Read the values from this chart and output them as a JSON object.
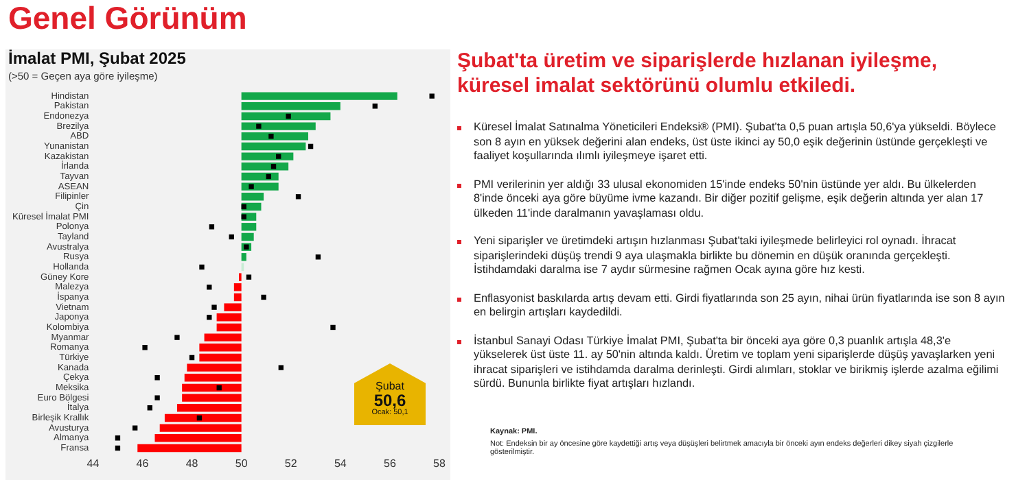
{
  "chart_data": {
    "type": "bar",
    "orientation": "horizontal",
    "title": "İmalat PMI, Şubat 2025",
    "subtitle": "(>50 = Geçen aya göre iyileşme)",
    "categories": [
      "Hindistan",
      "Pakistan",
      "Endonezya",
      "Brezilya",
      "ABD",
      "Yunanistan",
      "Kazakistan",
      "İrlanda",
      "Tayvan",
      "ASEAN",
      "Filipinler",
      "Çin",
      "Küresel İmalat PMI",
      "Polonya",
      "Tayland",
      "Avustralya",
      "Rusya",
      "Hollanda",
      "Güney Kore",
      "Malezya",
      "İspanya",
      "Vietnam",
      "Japonya",
      "Kolombiya",
      "Myanmar",
      "Romanya",
      "Türkiye",
      "Kanada",
      "Çekya",
      "Meksika",
      "Euro Bölgesi",
      "İtalya",
      "Birleşik Krallık",
      "Avusturya",
      "Almanya",
      "Fransa"
    ],
    "series": [
      {
        "type": "bar",
        "colors": [
          "#13a84a",
          "#13a84a",
          "#13a84a",
          "#13a84a",
          "#13a84a",
          "#13a84a",
          "#13a84a",
          "#13a84a",
          "#13a84a",
          "#13a84a",
          "#13a84a",
          "#13a84a",
          "#13a84a",
          "#13a84a",
          "#13a84a",
          "#13a84a",
          "#13a84a",
          "#c8ecd4",
          "#ff0000",
          "#ff0000",
          "#ff0000",
          "#ff0000",
          "#ff0000",
          "#ff0000",
          "#ff0000",
          "#ff0000",
          "#ff0000",
          "#ff0000",
          "#ff0000",
          "#ff0000",
          "#ff0000",
          "#ff0000",
          "#ff0000",
          "#ff0000",
          "#ff0000",
          "#ff0000"
        ],
        "base": [
          50,
          50,
          50,
          50,
          50,
          50,
          50,
          50,
          50,
          50,
          50,
          50,
          50,
          50,
          50,
          50,
          50,
          50,
          50,
          50,
          50,
          50,
          50,
          50,
          50,
          50,
          50,
          50,
          50,
          50,
          50,
          50,
          50,
          50,
          50,
          50
        ],
        "values": [
          6.3,
          4.0,
          3.6,
          3.0,
          2.7,
          2.6,
          2.1,
          1.9,
          1.5,
          1.5,
          0.9,
          0.8,
          0.6,
          0.6,
          0.5,
          0.4,
          0.2,
          0.1,
          -0.1,
          -0.3,
          -0.3,
          -0.7,
          -1.0,
          -1.0,
          -1.5,
          -1.7,
          -1.7,
          -2.2,
          -2.3,
          -2.4,
          -2.4,
          -2.6,
          -3.1,
          -3.3,
          -3.5,
          -4.2
        ]
      },
      {
        "type": "scatter",
        "color": "#000000",
        "x": [
          "Hindistan",
          "Pakistan",
          "Endonezya",
          "Brezilya",
          "ABD",
          "Yunanistan",
          "Kazakistan",
          "İrlanda",
          "Tayvan",
          "ASEAN",
          "Filipinler",
          "Çin",
          "Küresel İmalat PMI",
          "Polonya",
          "Tayland",
          "Avustralya",
          "Rusya",
          "Hollanda",
          "Güney Kore",
          "Malezya",
          "İspanya",
          "Vietnam",
          "Japonya",
          "Kolombiya",
          "Myanmar",
          "Romanya",
          "Türkiye",
          "Kanada",
          "Çekya",
          "Meksika",
          "Euro Bölgesi",
          "İtalya",
          "Birleşik Krallık",
          "Avusturya",
          "Almanya",
          "Fransa"
        ],
        "values": [
          57.7,
          55.4,
          51.9,
          50.7,
          51.2,
          52.8,
          51.5,
          51.3,
          51.1,
          50.4,
          52.3,
          50.1,
          50.1,
          48.8,
          49.6,
          50.2,
          53.1,
          48.4,
          50.3,
          48.7,
          50.9,
          48.9,
          48.7,
          53.7,
          47.4,
          46.1,
          48.0,
          51.6,
          46.6,
          49.1,
          46.6,
          46.3,
          48.3,
          45.7,
          45.0,
          45.0
        ]
      }
    ],
    "xlim": [
      44,
      58
    ],
    "xticks": [
      44,
      46,
      48,
      50,
      52,
      54,
      56,
      58
    ],
    "legend": false,
    "marker": "square",
    "annotations": [
      "Genel Görünüm",
      "Şubat'ta üretim ve siparişlerde hızlanan iyileşme, küresel imalat sektörünü olumlu etkiledi.",
      "Küresel İmalat Satınalma Yöneticileri Endeksi® (PMI). Şubat'ta 0,5 puan artışla 50,6'ya yükseldi. Böylece son 8 ayın en yüksek değerini alan endeks, üst üste ikinci ay 50,0 eşik değerinin üstünde gerçekleşti ve faaliyet koşullarında ılımlı iyileşmeye işaret etti.",
      "PMI verilerinin yer aldığı 33 ulusal ekonomiden 15'inde endeks 50'nin üstünde yer aldı. Bu ülkelerden 8'inde önceki aya göre büyüme ivme kazandı. Bir diğer pozitif gelişme, eşik değerin altında yer alan 17 ülkeden 11'inde daralmanın yavaşlaması oldu.",
      "Yeni siparişler ve üretimdeki artışın hızlanması Şubat'taki iyileşmede belirleyici rol oynadı. İhracat siparişlerindeki düşüş trendi 9 aya ulaşmakla birlikte bu dönemin en düşük oranında gerçekleşti. İstihdamdaki daralma ise 7 aydır sürmesine rağmen Ocak ayına göre hız kesti.",
      "Enflasyonist baskılarda artış devam etti. Girdi fiyatlarında son 25 ayın, nihai ürün fiyatlarında ise son 8 ayın en belirgin artışları kaydedildi.",
      "İstanbul Sanayi Odası Türkiye İmalat PMI, Şubat'ta bir önceki aya göre 0,3 puanlık artışla 48,3'e yükselerek üst üste 11. ay 50'nin altında kaldı. Üretim ve toplam yeni siparişlerde düşüş yavaşlarken yeni ihracat siparişleri ve istihdamda daralma derinleşti. Girdi alımları, stoklar ve birikmiş işlerde azalma eğilimi sürdü. Bununla birlikte fiyat artışları hızlandı.",
      "Şubat",
      "50,6",
      "Ocak: 50,1",
      "Kaynak: PMI.",
      "Not: Endeksin bir ay öncesine göre kaydettiği artış veya düşüşleri belirtmek amacıyla bir önceki ayın endeks değerleri dikey siyah çizgilerle gösterilmiştir."
    ]
  }
}
